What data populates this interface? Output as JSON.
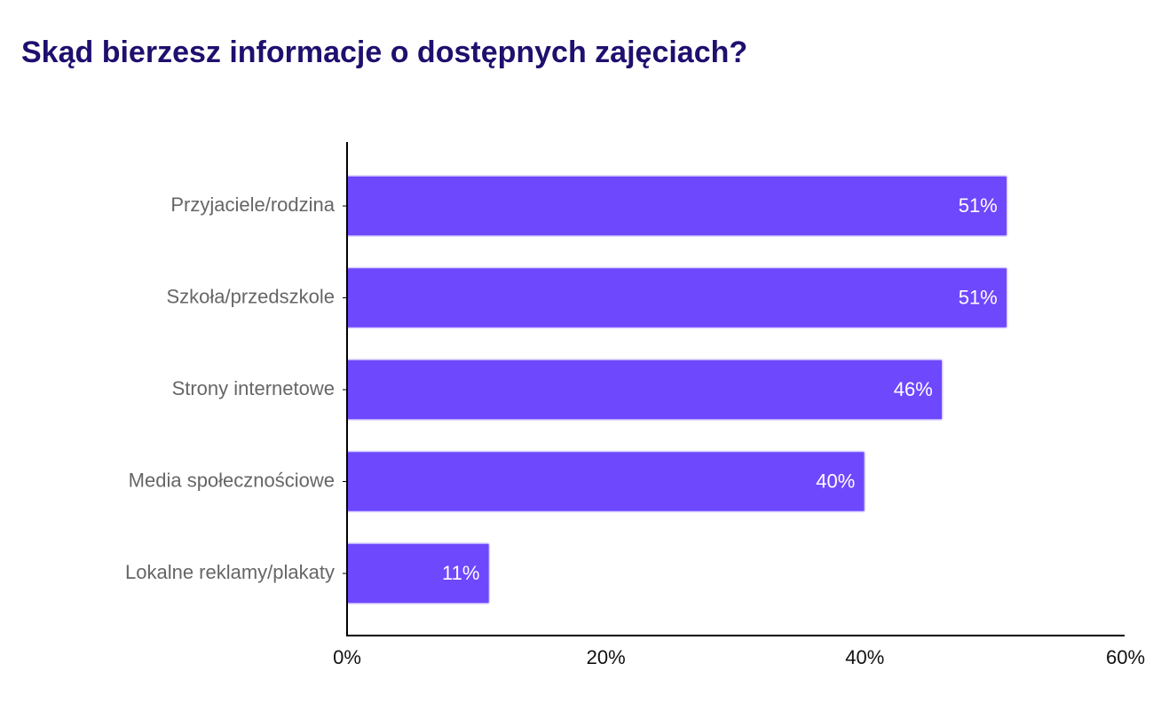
{
  "chart_data": {
    "type": "bar",
    "orientation": "horizontal",
    "title": "Skąd bierzesz informacje o dostępnych zajęciach?",
    "categories": [
      "Przyjaciele/rodzina",
      "Szkoła/przedszkole",
      "Strony internetowe",
      "Media społecznościowe",
      "Lokalne reklamy/plakaty"
    ],
    "values": [
      51,
      51,
      46,
      40,
      11
    ],
    "data_labels": [
      "51%",
      "51%",
      "46%",
      "40%",
      "11%"
    ],
    "xlim": [
      0,
      60
    ],
    "xticks": [
      0,
      20,
      40,
      60
    ],
    "xtick_labels": [
      "0%",
      "20%",
      "40%",
      "60%"
    ],
    "xlabel": "",
    "ylabel": "",
    "grid": false,
    "legend": "none",
    "colors": {
      "bar": "#6e48fd",
      "bar_border": "#d9d0ff",
      "title": "#1f0f6e",
      "category_text": "#666666",
      "axis": "#000000",
      "data_label": "#ffffff"
    }
  }
}
